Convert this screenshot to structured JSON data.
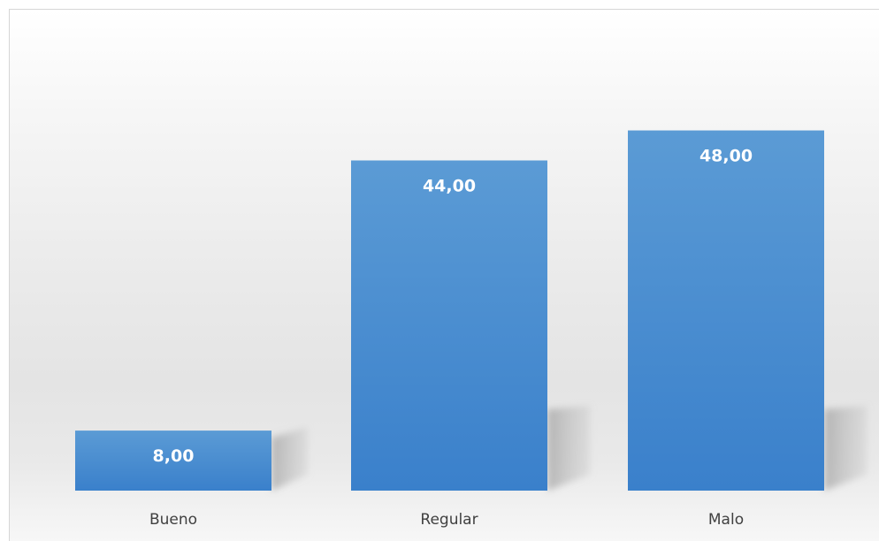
{
  "chart_data": {
    "type": "bar",
    "categories": [
      "Bueno",
      "Regular",
      "Malo"
    ],
    "values": [
      8.0,
      44.0,
      48.0
    ],
    "data_labels": [
      "8,00",
      "44,00",
      "48,00"
    ],
    "title": "",
    "xlabel": "",
    "ylabel": "",
    "ylim": [
      0,
      48.3
    ],
    "grid": false,
    "legend": "none",
    "bar_color": "#4a8fd4",
    "bar_color_top": "#5b9bd5",
    "bar_color_bottom": "#3a80cb"
  }
}
